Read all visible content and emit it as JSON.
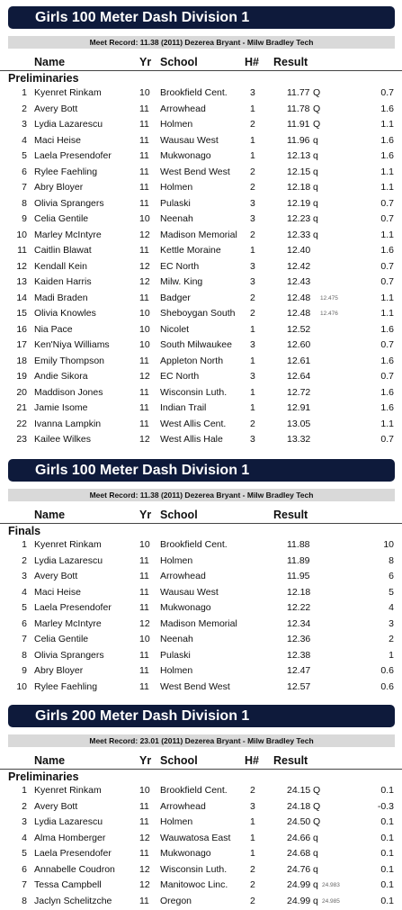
{
  "sections": [
    {
      "title": "Girls 100 Meter Dash Division 1",
      "meet_record": "Meet Record: 11.38 (2011) Dezerea Bryant - Milw Bradley Tech",
      "headers": {
        "name": "Name",
        "yr": "Yr",
        "school": "School",
        "heat": "H#",
        "result": "Result"
      },
      "round": "Preliminaries",
      "rows": [
        {
          "place": "1",
          "name": "Kyenret Rinkam",
          "yr": "10",
          "school": "Brookfield Cent.",
          "heat": "3",
          "result": "11.77",
          "q": "Q",
          "tb": "",
          "wind": "0.7"
        },
        {
          "place": "2",
          "name": "Avery Bott",
          "yr": "11",
          "school": "Arrowhead",
          "heat": "1",
          "result": "11.78",
          "q": "Q",
          "tb": "",
          "wind": "1.6"
        },
        {
          "place": "3",
          "name": "Lydia Lazarescu",
          "yr": "11",
          "school": "Holmen",
          "heat": "2",
          "result": "11.91",
          "q": "Q",
          "tb": "",
          "wind": "1.1"
        },
        {
          "place": "4",
          "name": "Maci Heise",
          "yr": "11",
          "school": "Wausau West",
          "heat": "1",
          "result": "11.96",
          "q": "q",
          "tb": "",
          "wind": "1.6"
        },
        {
          "place": "5",
          "name": "Laela Presendofer",
          "yr": "11",
          "school": "Mukwonago",
          "heat": "1",
          "result": "12.13",
          "q": "q",
          "tb": "",
          "wind": "1.6"
        },
        {
          "place": "6",
          "name": "Rylee Faehling",
          "yr": "11",
          "school": "West Bend West",
          "heat": "2",
          "result": "12.15",
          "q": "q",
          "tb": "",
          "wind": "1.1"
        },
        {
          "place": "7",
          "name": "Abry Bloyer",
          "yr": "11",
          "school": "Holmen",
          "heat": "2",
          "result": "12.18",
          "q": "q",
          "tb": "",
          "wind": "1.1"
        },
        {
          "place": "8",
          "name": "Olivia Sprangers",
          "yr": "11",
          "school": "Pulaski",
          "heat": "3",
          "result": "12.19",
          "q": "q",
          "tb": "",
          "wind": "0.7"
        },
        {
          "place": "9",
          "name": "Celia Gentile",
          "yr": "10",
          "school": "Neenah",
          "heat": "3",
          "result": "12.23",
          "q": "q",
          "tb": "",
          "wind": "0.7"
        },
        {
          "place": "10",
          "name": "Marley McIntyre",
          "yr": "12",
          "school": "Madison Memorial",
          "heat": "2",
          "result": "12.33",
          "q": "q",
          "tb": "",
          "wind": "1.1"
        },
        {
          "place": "11",
          "name": "Caitlin Blawat",
          "yr": "11",
          "school": "Kettle Moraine",
          "heat": "1",
          "result": "12.40",
          "q": "",
          "tb": "",
          "wind": "1.6"
        },
        {
          "place": "12",
          "name": "Kendall Kein",
          "yr": "12",
          "school": "EC North",
          "heat": "3",
          "result": "12.42",
          "q": "",
          "tb": "",
          "wind": "0.7"
        },
        {
          "place": "13",
          "name": "Kaiden Harris",
          "yr": "12",
          "school": "Milw. King",
          "heat": "3",
          "result": "12.43",
          "q": "",
          "tb": "",
          "wind": "0.7"
        },
        {
          "place": "14",
          "name": "Madi Braden",
          "yr": "11",
          "school": "Badger",
          "heat": "2",
          "result": "12.48",
          "q": "",
          "tb": "12.475",
          "wind": "1.1"
        },
        {
          "place": "15",
          "name": "Olivia Knowles",
          "yr": "10",
          "school": "Sheboygan South",
          "heat": "2",
          "result": "12.48",
          "q": "",
          "tb": "12.476",
          "wind": "1.1"
        },
        {
          "place": "16",
          "name": "Nia Pace",
          "yr": "10",
          "school": "Nicolet",
          "heat": "1",
          "result": "12.52",
          "q": "",
          "tb": "",
          "wind": "1.6"
        },
        {
          "place": "17",
          "name": "Ken'Niya Williams",
          "yr": "10",
          "school": "South Milwaukee",
          "heat": "3",
          "result": "12.60",
          "q": "",
          "tb": "",
          "wind": "0.7"
        },
        {
          "place": "18",
          "name": "Emily Thompson",
          "yr": "11",
          "school": "Appleton North",
          "heat": "1",
          "result": "12.61",
          "q": "",
          "tb": "",
          "wind": "1.6"
        },
        {
          "place": "19",
          "name": "Andie Sikora",
          "yr": "12",
          "school": "EC North",
          "heat": "3",
          "result": "12.64",
          "q": "",
          "tb": "",
          "wind": "0.7"
        },
        {
          "place": "20",
          "name": "Maddison Jones",
          "yr": "11",
          "school": "Wisconsin Luth.",
          "heat": "1",
          "result": "12.72",
          "q": "",
          "tb": "",
          "wind": "1.6"
        },
        {
          "place": "21",
          "name": "Jamie Isome",
          "yr": "11",
          "school": "Indian Trail",
          "heat": "1",
          "result": "12.91",
          "q": "",
          "tb": "",
          "wind": "1.6"
        },
        {
          "place": "22",
          "name": "Ivanna Lampkin",
          "yr": "11",
          "school": "West Allis Cent.",
          "heat": "2",
          "result": "13.05",
          "q": "",
          "tb": "",
          "wind": "1.1"
        },
        {
          "place": "23",
          "name": "Kailee Wilkes",
          "yr": "12",
          "school": "West Allis Hale",
          "heat": "3",
          "result": "13.32",
          "q": "",
          "tb": "",
          "wind": "0.7"
        }
      ]
    },
    {
      "title": "Girls 100 Meter Dash Division 1",
      "meet_record": "Meet Record: 11.38 (2011) Dezerea Bryant - Milw Bradley Tech",
      "headers": {
        "name": "Name",
        "yr": "Yr",
        "school": "School",
        "heat": "",
        "result": "Result"
      },
      "round": "Finals",
      "rows": [
        {
          "place": "1",
          "name": "Kyenret Rinkam",
          "yr": "10",
          "school": "Brookfield Cent.",
          "heat": "",
          "result": "11.88",
          "q": "",
          "tb": "",
          "wind": "10"
        },
        {
          "place": "2",
          "name": "Lydia Lazarescu",
          "yr": "11",
          "school": "Holmen",
          "heat": "",
          "result": "11.89",
          "q": "",
          "tb": "",
          "wind": "8"
        },
        {
          "place": "3",
          "name": "Avery Bott",
          "yr": "11",
          "school": "Arrowhead",
          "heat": "",
          "result": "11.95",
          "q": "",
          "tb": "",
          "wind": "6"
        },
        {
          "place": "4",
          "name": "Maci Heise",
          "yr": "11",
          "school": "Wausau West",
          "heat": "",
          "result": "12.18",
          "q": "",
          "tb": "",
          "wind": "5"
        },
        {
          "place": "5",
          "name": "Laela Presendofer",
          "yr": "11",
          "school": "Mukwonago",
          "heat": "",
          "result": "12.22",
          "q": "",
          "tb": "",
          "wind": "4"
        },
        {
          "place": "6",
          "name": "Marley McIntyre",
          "yr": "12",
          "school": "Madison Memorial",
          "heat": "",
          "result": "12.34",
          "q": "",
          "tb": "",
          "wind": "3"
        },
        {
          "place": "7",
          "name": "Celia Gentile",
          "yr": "10",
          "school": "Neenah",
          "heat": "",
          "result": "12.36",
          "q": "",
          "tb": "",
          "wind": "2"
        },
        {
          "place": "8",
          "name": "Olivia Sprangers",
          "yr": "11",
          "school": "Pulaski",
          "heat": "",
          "result": "12.38",
          "q": "",
          "tb": "",
          "wind": "1"
        },
        {
          "place": "9",
          "name": "Abry Bloyer",
          "yr": "11",
          "school": "Holmen",
          "heat": "",
          "result": "12.47",
          "q": "",
          "tb": "",
          "wind": "0.6"
        },
        {
          "place": "10",
          "name": "Rylee Faehling",
          "yr": "11",
          "school": "West Bend West",
          "heat": "",
          "result": "12.57",
          "q": "",
          "tb": "",
          "wind": "0.6"
        }
      ]
    },
    {
      "title": "Girls 200 Meter Dash Division 1",
      "meet_record": "Meet Record: 23.01 (2011) Dezerea Bryant - Milw Bradley Tech",
      "headers": {
        "name": "Name",
        "yr": "Yr",
        "school": "School",
        "heat": "H#",
        "result": "Result"
      },
      "round": "Preliminaries",
      "rows": [
        {
          "place": "1",
          "name": "Kyenret Rinkam",
          "yr": "10",
          "school": "Brookfield Cent.",
          "heat": "2",
          "result": "24.15",
          "q": "Q",
          "tb": "",
          "wind": "0.1"
        },
        {
          "place": "2",
          "name": "Avery Bott",
          "yr": "11",
          "school": "Arrowhead",
          "heat": "3",
          "result": "24.18",
          "q": "Q",
          "tb": "",
          "wind": "-0.3"
        },
        {
          "place": "3",
          "name": "Lydia Lazarescu",
          "yr": "11",
          "school": "Holmen",
          "heat": "1",
          "result": "24.50",
          "q": "Q",
          "tb": "",
          "wind": "0.1"
        },
        {
          "place": "4",
          "name": "Alma Homberger",
          "yr": "12",
          "school": "Wauwatosa East",
          "heat": "1",
          "result": "24.66",
          "q": "q",
          "tb": "",
          "wind": "0.1"
        },
        {
          "place": "5",
          "name": "Laela Presendofer",
          "yr": "11",
          "school": "Mukwonago",
          "heat": "1",
          "result": "24.68",
          "q": "q",
          "tb": "",
          "wind": "0.1"
        },
        {
          "place": "6",
          "name": "Annabelle Coudron",
          "yr": "12",
          "school": "Wisconsin Luth.",
          "heat": "2",
          "result": "24.76",
          "q": "q",
          "tb": "",
          "wind": "0.1"
        },
        {
          "place": "7",
          "name": "Tessa Campbell",
          "yr": "12",
          "school": "Manitowoc Linc.",
          "heat": "2",
          "result": "24.99",
          "q": "q",
          "tb": "24.983",
          "wind": "0.1"
        },
        {
          "place": "8",
          "name": "Jaclyn Schelitzche",
          "yr": "11",
          "school": "Oregon",
          "heat": "2",
          "result": "24.99",
          "q": "q",
          "tb": "24.985",
          "wind": "0.1"
        }
      ]
    }
  ]
}
